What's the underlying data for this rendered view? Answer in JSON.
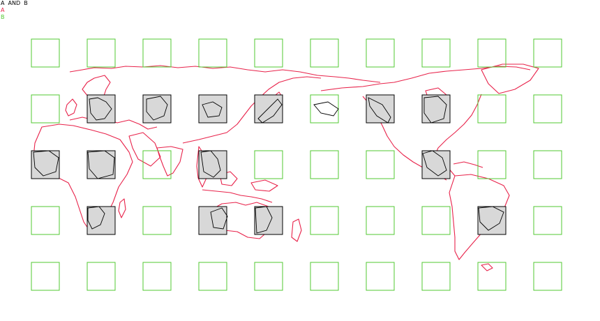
{
  "legend": {
    "items": [
      {
        "label": "A  AND  B",
        "color": "#000000"
      },
      {
        "label": "A",
        "color": "#e8224a"
      },
      {
        "label": "B",
        "color": "#52c832"
      }
    ]
  },
  "colors": {
    "intersection_fill": "#d8d8d8",
    "intersection_stroke": "#000000",
    "coastline_a": "#e8224a",
    "grid_b": "#52c832"
  },
  "grid": {
    "rows": 5,
    "cols": 10,
    "cells_with_intersection": [
      [
        1,
        1
      ],
      [
        1,
        2
      ],
      [
        1,
        3
      ],
      [
        1,
        4
      ],
      [
        1,
        6
      ],
      [
        1,
        7
      ],
      [
        2,
        0
      ],
      [
        2,
        1
      ],
      [
        2,
        3
      ],
      [
        2,
        7
      ],
      [
        3,
        1
      ],
      [
        3,
        3
      ],
      [
        3,
        4
      ],
      [
        3,
        8
      ]
    ]
  }
}
